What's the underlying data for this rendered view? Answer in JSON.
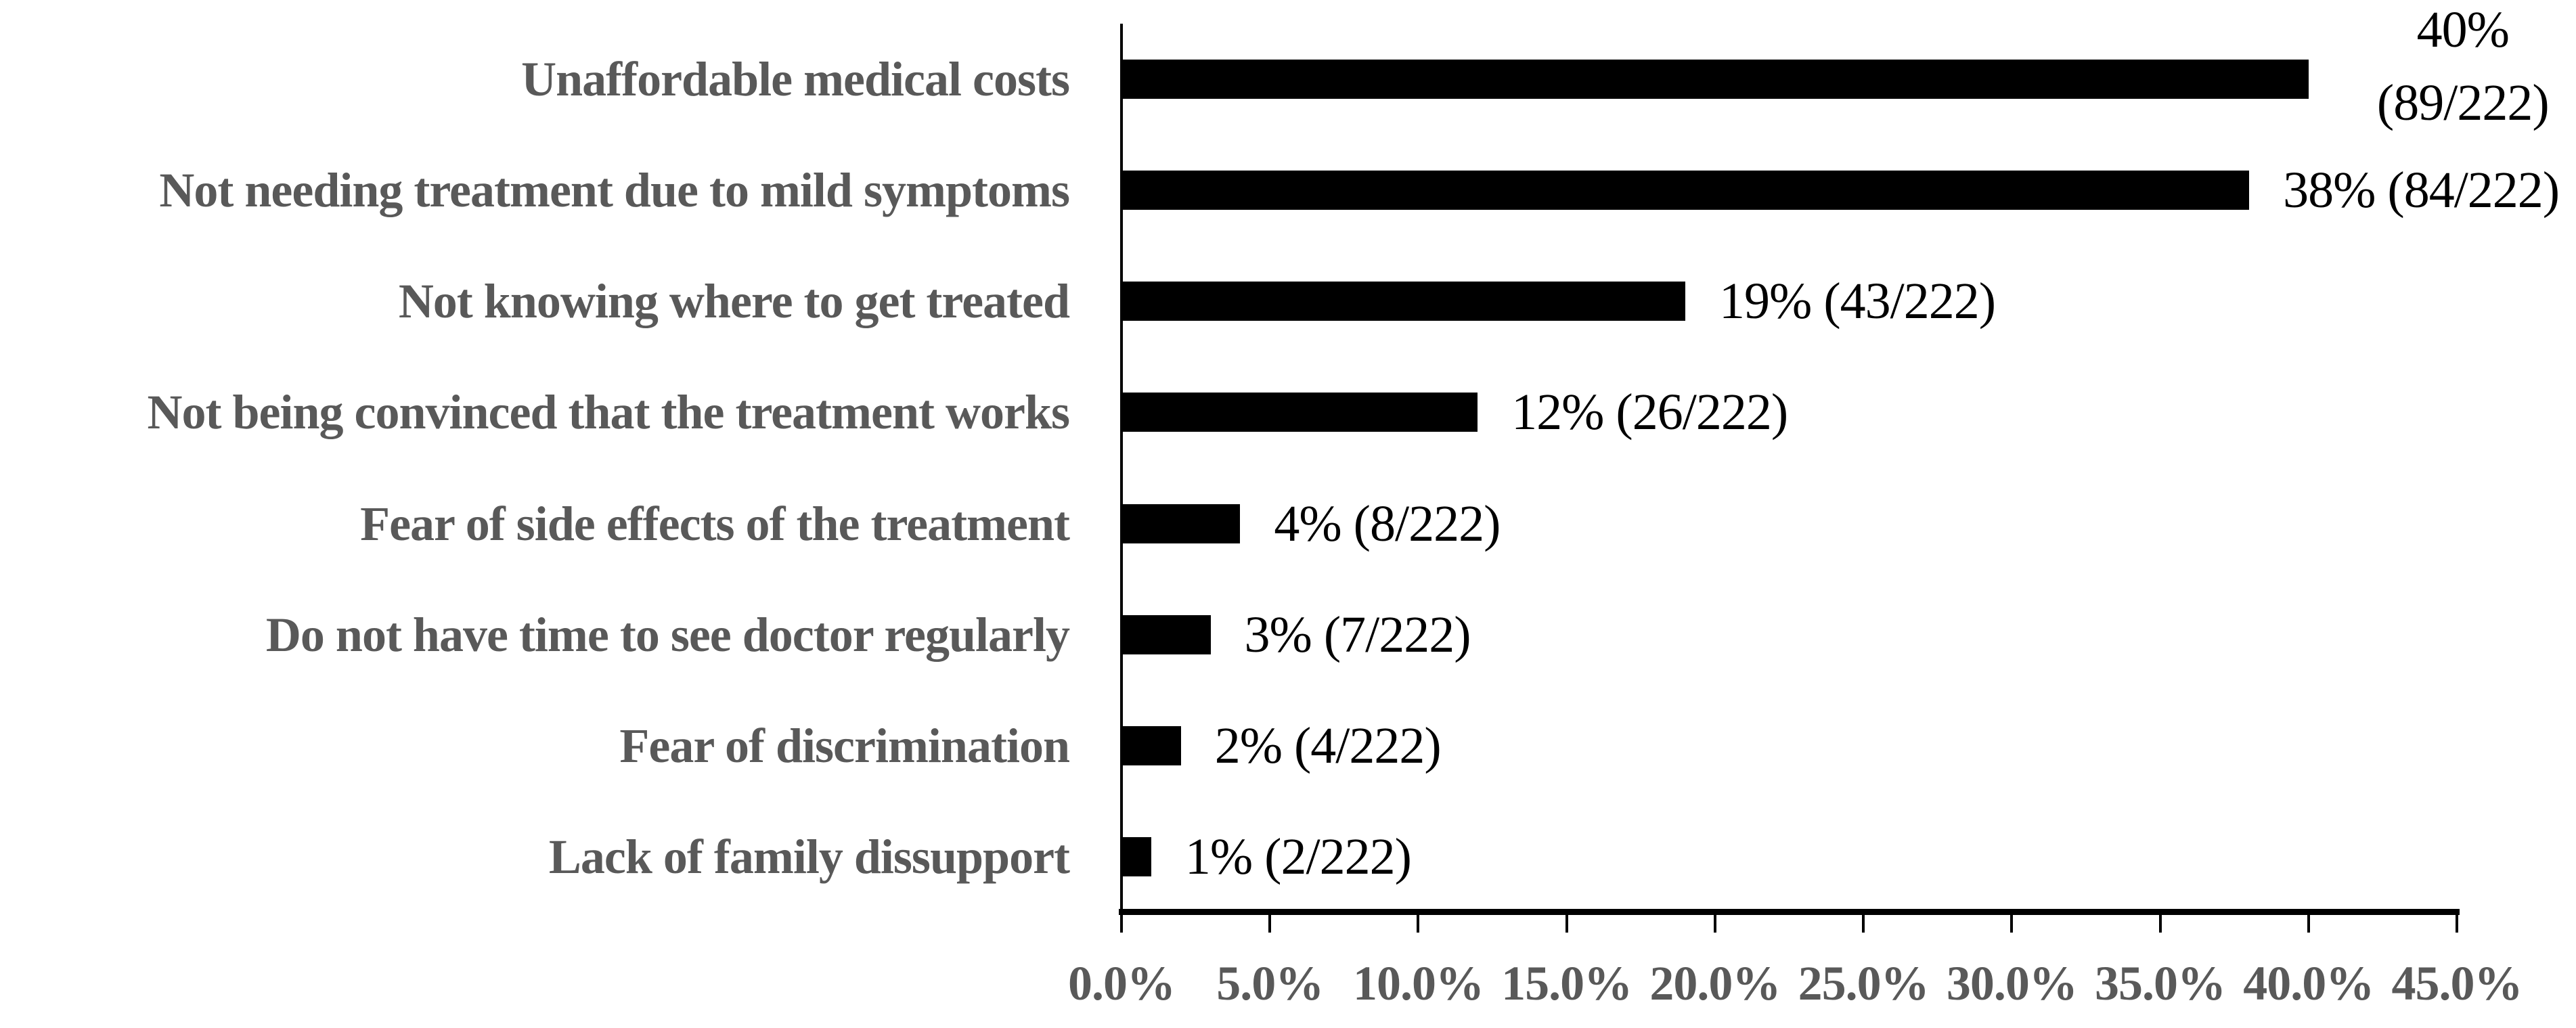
{
  "chart_data": {
    "type": "bar",
    "orientation": "horizontal",
    "title": "",
    "xlabel": "",
    "ylabel": "",
    "categories": [
      "Unaffordable medical costs",
      "Not needing treatment due to mild symptoms",
      "Not knowing where to get treated",
      "Not being convinced that the treatment works",
      "Fear of side effects of the treatment",
      "Do not have time to see doctor regularly",
      "Fear of discrimination",
      "Lack of family dissupport"
    ],
    "values": [
      40,
      38,
      19,
      12,
      4,
      3,
      2,
      1
    ],
    "counts": [
      89,
      84,
      43,
      26,
      8,
      7,
      4,
      2
    ],
    "denominator": 222,
    "value_label_lines": [
      [
        "40%",
        "(89/222)"
      ],
      [
        "38% (84/222)"
      ],
      [
        "19% (43/222)"
      ],
      [
        "12% (26/222)"
      ],
      [
        "4% (8/222)"
      ],
      [
        "3% (7/222)"
      ],
      [
        "2% (4/222)"
      ],
      [
        "1% (2/222)"
      ]
    ],
    "x_tick_labels": [
      "0.0%",
      "5.0%",
      "10.0%",
      "15.0%",
      "20.0%",
      "25.0%",
      "30.0%",
      "35.0%",
      "40.0%",
      "45.0%"
    ],
    "xlim": [
      0,
      45
    ],
    "grid": false,
    "legend": null,
    "bar_color": "#000000",
    "axis_color": "#000000",
    "category_label_color": "#595959",
    "tick_label_color": "#595959",
    "value_label_color": "#000000"
  }
}
